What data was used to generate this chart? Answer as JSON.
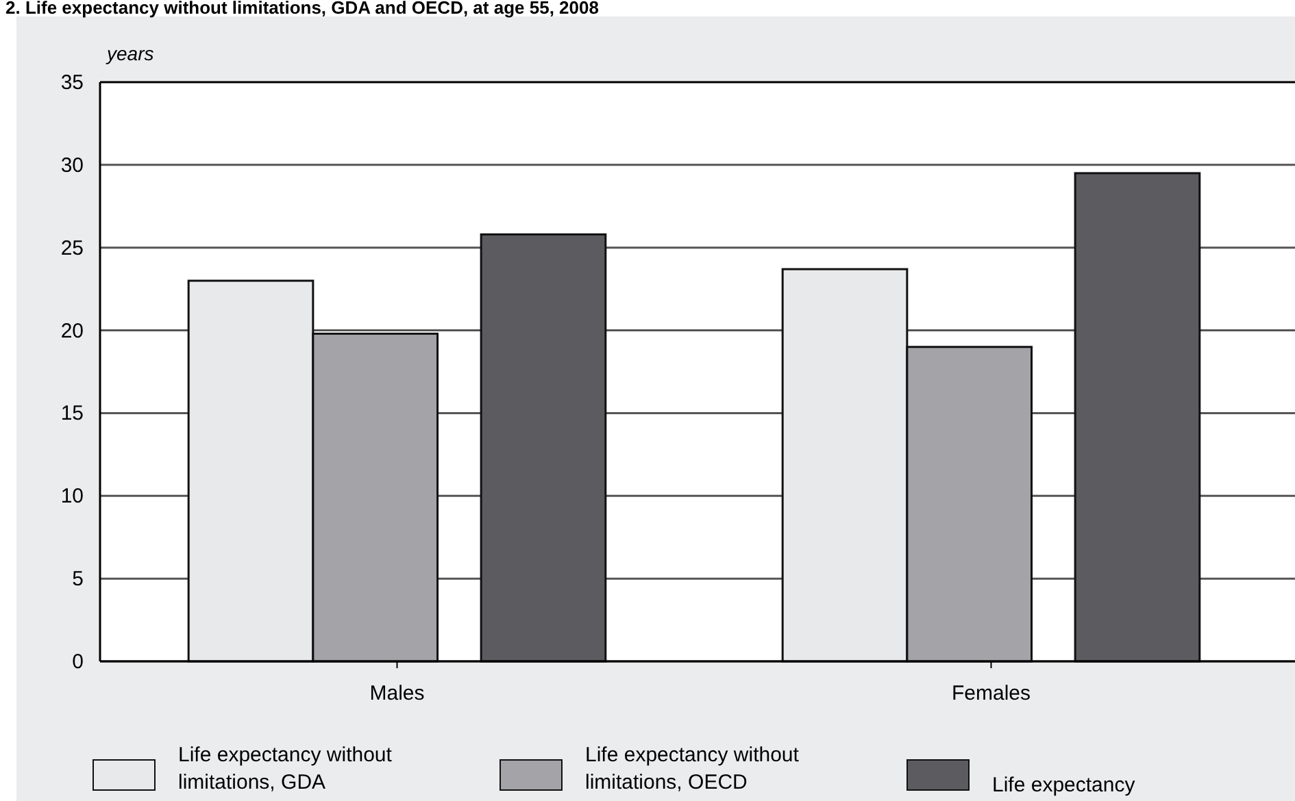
{
  "chart_data": {
    "type": "bar",
    "title": "2. Life expectancy without limitations, GDA and OECD, at age 55, 2008",
    "ylabel": "years",
    "categories": [
      "Males",
      "Females"
    ],
    "series": [
      {
        "name": "Life expectancy without limitations, GDA",
        "color": "#e8e9eb",
        "values": [
          23.0,
          23.7
        ]
      },
      {
        "name": "Life expectancy without limitations, OECD",
        "color": "#a4a3a8",
        "values": [
          19.8,
          19.0
        ]
      },
      {
        "name": "Life expectancy",
        "color": "#5c5b60",
        "values": [
          25.8,
          29.5
        ]
      }
    ],
    "ylim": [
      0,
      35
    ],
    "yticks": [
      0,
      5,
      10,
      15,
      20,
      25,
      30,
      35
    ],
    "grid": "y",
    "legend": "bottom"
  }
}
